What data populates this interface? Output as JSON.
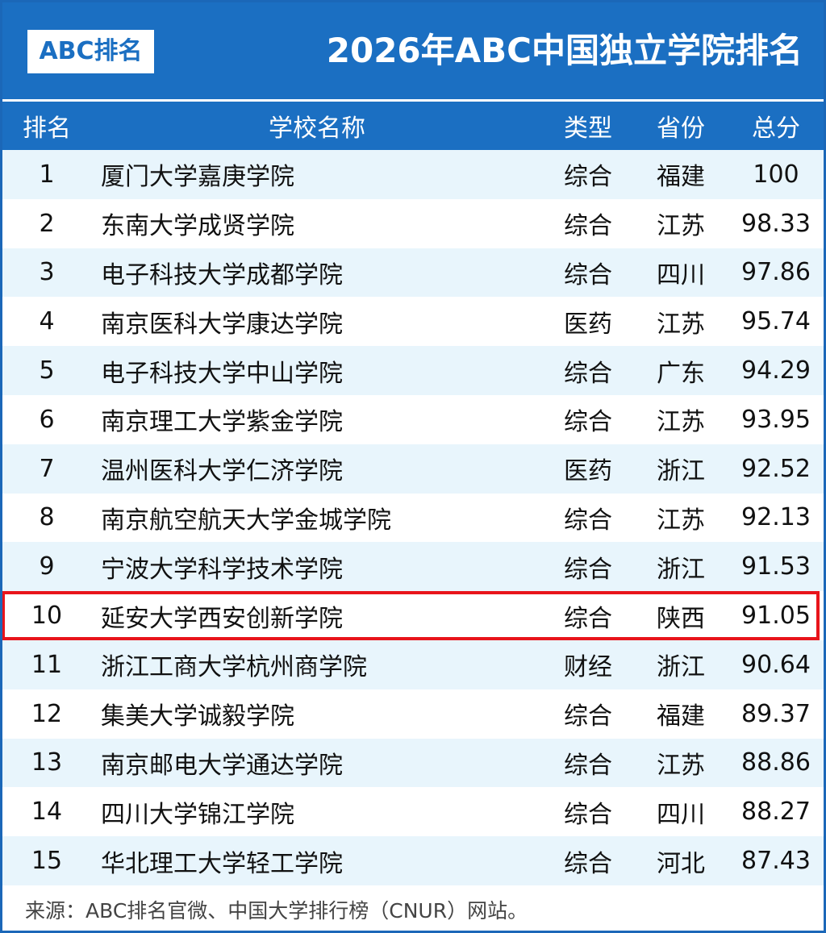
{
  "banner": {
    "logo": "ABC排名",
    "title": "2026年ABC中国独立学院排名"
  },
  "table": {
    "headers": {
      "rank": "排名",
      "name": "学校名称",
      "type": "类型",
      "province": "省份",
      "score": "总分"
    },
    "highlighted_rank": "10",
    "highlight_color": "#e8141b",
    "rows": [
      {
        "rank": "1",
        "name": "厦门大学嘉庚学院",
        "type": "综合",
        "province": "福建",
        "score": "100"
      },
      {
        "rank": "2",
        "name": "东南大学成贤学院",
        "type": "综合",
        "province": "江苏",
        "score": "98.33"
      },
      {
        "rank": "3",
        "name": "电子科技大学成都学院",
        "type": "综合",
        "province": "四川",
        "score": "97.86"
      },
      {
        "rank": "4",
        "name": "南京医科大学康达学院",
        "type": "医药",
        "province": "江苏",
        "score": "95.74"
      },
      {
        "rank": "5",
        "name": "电子科技大学中山学院",
        "type": "综合",
        "province": "广东",
        "score": "94.29"
      },
      {
        "rank": "6",
        "name": "南京理工大学紫金学院",
        "type": "综合",
        "province": "江苏",
        "score": "93.95"
      },
      {
        "rank": "7",
        "name": "温州医科大学仁济学院",
        "type": "医药",
        "province": "浙江",
        "score": "92.52"
      },
      {
        "rank": "8",
        "name": "南京航空航天大学金城学院",
        "type": "综合",
        "province": "江苏",
        "score": "92.13"
      },
      {
        "rank": "9",
        "name": "宁波大学科学技术学院",
        "type": "综合",
        "province": "浙江",
        "score": "91.53"
      },
      {
        "rank": "10",
        "name": "延安大学西安创新学院",
        "type": "综合",
        "province": "陕西",
        "score": "91.05"
      },
      {
        "rank": "11",
        "name": "浙江工商大学杭州商学院",
        "type": "财经",
        "province": "浙江",
        "score": "90.64"
      },
      {
        "rank": "12",
        "name": "集美大学诚毅学院",
        "type": "综合",
        "province": "福建",
        "score": "89.37"
      },
      {
        "rank": "13",
        "name": "南京邮电大学通达学院",
        "type": "综合",
        "province": "江苏",
        "score": "88.86"
      },
      {
        "rank": "14",
        "name": "四川大学锦江学院",
        "type": "综合",
        "province": "四川",
        "score": "88.27"
      },
      {
        "rank": "15",
        "name": "华北理工大学轻工学院",
        "type": "综合",
        "province": "河北",
        "score": "87.43"
      }
    ]
  },
  "footer": {
    "source": "来源：ABC排名官微、中国大学排行榜（CNUR）网站。"
  }
}
